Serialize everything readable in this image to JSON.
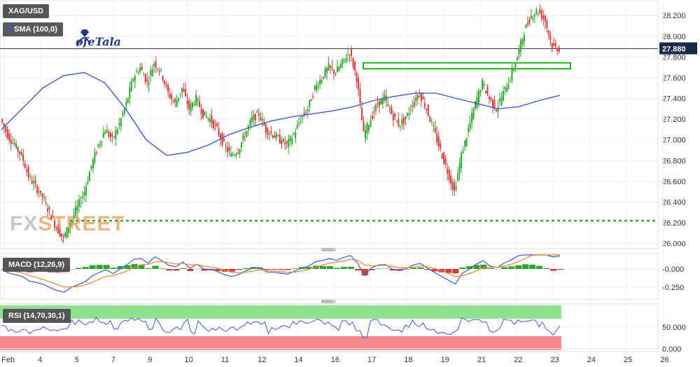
{
  "symbol": "XAG/USD",
  "indicator_label": "SMA (100,0)",
  "macd_label": "MACD (12,26,9)",
  "rsi_label": "RSI (14,70,30,1)",
  "logo_text": "ofeTala",
  "brand_text_a": "FX",
  "brand_text_b": "STREET",
  "colors": {
    "up": "#2aa52a",
    "down": "#d43a3a",
    "sma": "#3b5bdb",
    "level": "#22b522",
    "rsi_over": "#8ee38e",
    "rsi_under": "#f38b8b",
    "macd_line": "#3b5bdb",
    "macd_signal": "#f0842c"
  },
  "chart_data": {
    "type": "line",
    "title": "XAG/USD",
    "price_axis": {
      "ticks": [
        "28.200",
        "28.000",
        "27.800",
        "27.600",
        "27.400",
        "27.200",
        "27.000",
        "26.800",
        "26.600",
        "26.400",
        "26.200",
        "26.000"
      ],
      "ylim": [
        25.95,
        28.35
      ]
    },
    "x_ticks": [
      "Feb",
      "4",
      "5",
      "7",
      "9",
      "10",
      "11",
      "12",
      "14",
      "16",
      "17",
      "18",
      "19",
      "21",
      "22",
      "23",
      "24",
      "25",
      "26"
    ],
    "last_price": "27.880",
    "support_level": 26.22,
    "resistance_box": [
      27.7,
      27.73
    ],
    "price_path": [
      27.2,
      27.05,
      26.95,
      26.85,
      26.65,
      26.55,
      26.45,
      26.3,
      26.15,
      26.05,
      26.2,
      26.35,
      26.5,
      26.75,
      26.95,
      27.1,
      27.0,
      27.15,
      27.35,
      27.6,
      27.7,
      27.55,
      27.75,
      27.65,
      27.45,
      27.35,
      27.5,
      27.3,
      27.4,
      27.25,
      27.2,
      27.1,
      26.95,
      26.85,
      26.9,
      27.05,
      27.2,
      27.25,
      27.1,
      27.05,
      27.0,
      26.95,
      27.05,
      27.2,
      27.3,
      27.5,
      27.6,
      27.7,
      27.65,
      27.75,
      27.85,
      27.6,
      27.05,
      27.2,
      27.35,
      27.4,
      27.25,
      27.15,
      27.2,
      27.35,
      27.45,
      27.3,
      27.1,
      26.9,
      26.7,
      26.5,
      26.85,
      27.1,
      27.35,
      27.55,
      27.4,
      27.3,
      27.45,
      27.6,
      27.8,
      28.05,
      28.2,
      28.25,
      28.15,
      27.9,
      27.88
    ],
    "sma_path": [
      27.1,
      27.3,
      27.5,
      27.62,
      27.65,
      27.55,
      27.3,
      27.0,
      26.85,
      26.88,
      26.95,
      27.05,
      27.12,
      27.18,
      27.22,
      27.25,
      27.28,
      27.32,
      27.38,
      27.42,
      27.45,
      27.45,
      27.4,
      27.35,
      27.3,
      27.32,
      27.38,
      27.43
    ],
    "macd_axis": {
      "ticks": [
        "-0.000",
        "-0.250"
      ]
    },
    "rsi_axis": {
      "ticks": [
        "50.000",
        "0.000"
      ]
    }
  }
}
